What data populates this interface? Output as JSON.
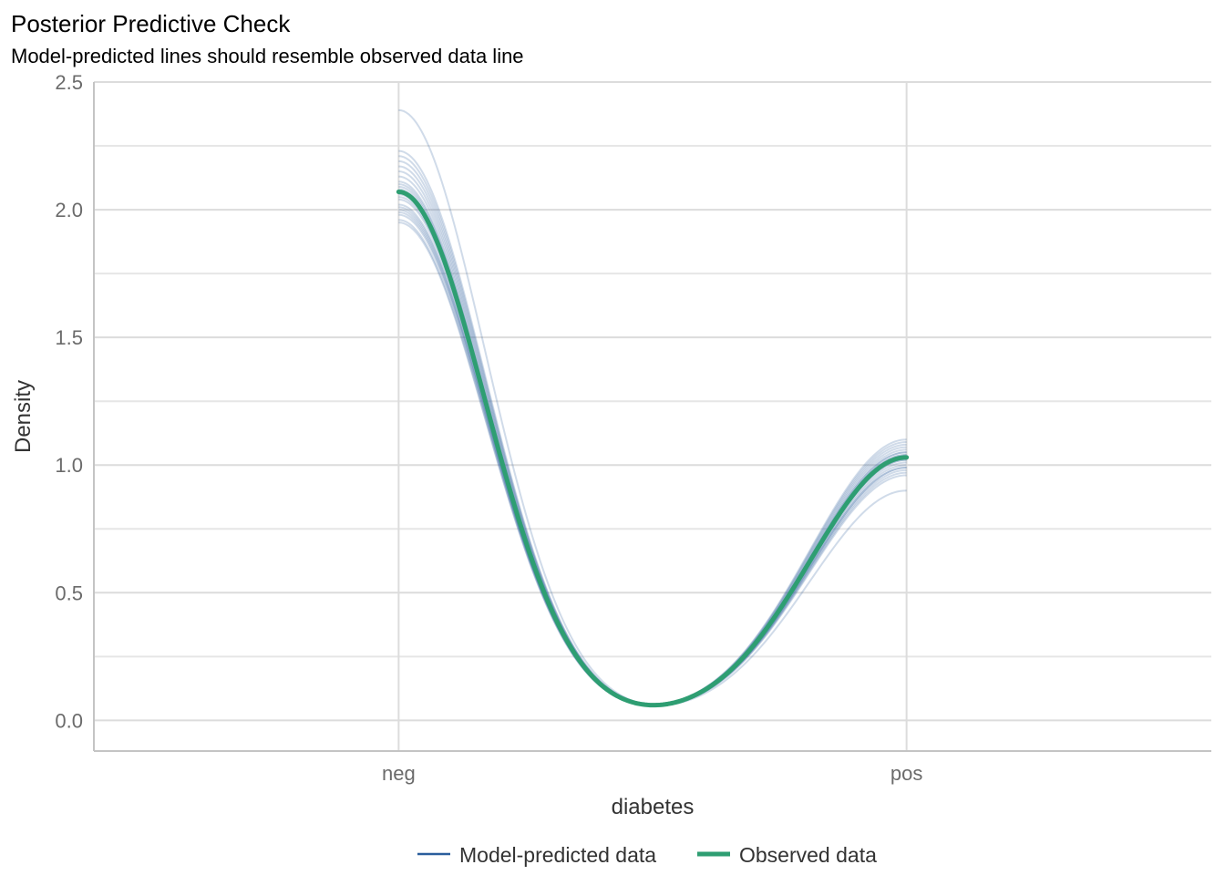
{
  "chart_data": {
    "type": "line",
    "title": "Posterior Predictive Check",
    "subtitle": "Model-predicted lines should resemble observed data line",
    "xlabel": "diabetes",
    "ylabel": "Density",
    "x_categories": [
      "neg",
      "pos"
    ],
    "x_range": [
      0.4,
      2.6
    ],
    "y_range": [
      -0.12,
      2.5
    ],
    "y_ticks": [
      "0.0",
      "0.5",
      "1.0",
      "1.5",
      "2.0",
      "2.5"
    ],
    "y_tick_values": [
      0,
      0.5,
      1,
      1.5,
      2,
      2.5
    ],
    "grid": true,
    "legend_position": "bottom",
    "legend": [
      {
        "label": "Model-predicted data",
        "color": "#2a5d9c"
      },
      {
        "label": "Observed data",
        "color": "#2e9e72"
      }
    ],
    "series": [
      {
        "name": "Observed data",
        "color": "#2e9e72",
        "peak_at_neg": 2.07,
        "peak_at_pos": 1.03
      },
      {
        "name": "Model-predicted data",
        "color": "#2a5d9c",
        "peaks_at_neg": [
          2.39,
          2.23,
          2.21,
          2.19,
          2.17,
          2.15,
          2.13,
          2.11,
          2.1,
          2.09,
          2.08,
          2.06,
          2.05,
          2.04,
          2.02,
          2.01,
          2.0,
          1.99,
          1.98,
          1.96,
          1.95
        ],
        "peaks_at_pos": [
          0.9,
          1.1,
          1.09,
          1.08,
          1.07,
          1.06,
          1.05,
          1.05,
          1.04,
          1.04,
          1.03,
          1.03,
          1.02,
          1.02,
          1.01,
          1.0,
          0.99,
          0.99,
          0.98,
          0.97,
          0.96
        ]
      }
    ]
  }
}
